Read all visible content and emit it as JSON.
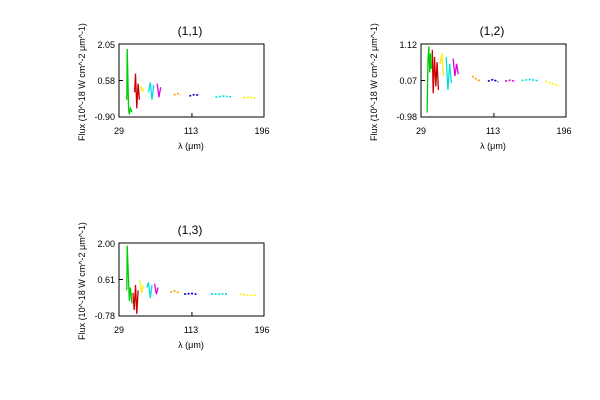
{
  "panels": [
    {
      "id": "p11",
      "title": "(1,1)",
      "ylabel": "Flux (10^-18 W cm^-2 μm^-1)",
      "xlabel": "λ (μm)",
      "xticks": [
        "29",
        "113",
        "196"
      ],
      "yticks": [
        "2.05",
        "0.58",
        "-0.90"
      ]
    },
    {
      "id": "p12",
      "title": "(1,2)",
      "ylabel": "Flux (10^-18 W cm^-2 μm^-1)",
      "xlabel": "λ (μm)",
      "xticks": [
        "29",
        "113",
        "196"
      ],
      "yticks": [
        "1.12",
        "0.07",
        "-0.98"
      ]
    },
    {
      "id": "p13",
      "title": "(1,3)",
      "ylabel": "Flux (10^-18 W cm^-2 μm^-1)",
      "xlabel": "λ (μm)",
      "xticks": [
        "29",
        "113",
        "196"
      ],
      "yticks": [
        "2.00",
        "0.61",
        "-0.78"
      ]
    }
  ],
  "chart_data": [
    {
      "type": "line",
      "title": "(1,1)",
      "xlabel": "λ (μm)",
      "ylabel": "Flux (10^-18 W cm^-2 μm^-1)",
      "xlim": [
        29,
        196
      ],
      "ylim": [
        -0.9,
        2.05
      ],
      "series": [
        {
          "color": "#00cc00",
          "x": [
            38,
            38.5,
            40,
            41,
            42,
            44
          ],
          "y": [
            -0.2,
            1.85,
            -0.6,
            -0.8,
            -0.55,
            -0.7
          ]
        },
        {
          "color": "#cc0000",
          "x": [
            47,
            48,
            49.5,
            51,
            52.5
          ],
          "y": [
            0.1,
            0.85,
            -0.55,
            0.45,
            -0.2
          ]
        },
        {
          "color": "#ffee00",
          "x": [
            54,
            56,
            58
          ],
          "y": [
            0.35,
            0.15,
            0.25
          ]
        },
        {
          "color": "#00dddd",
          "x": [
            63,
            65,
            67,
            69
          ],
          "y": [
            0.1,
            0.5,
            -0.2,
            0.4
          ]
        },
        {
          "color": "#dd00dd",
          "x": [
            73,
            75,
            77
          ],
          "y": [
            0.45,
            -0.1,
            0.3
          ]
        },
        {
          "color": "#ff9900",
          "x": [
            92,
            96,
            100
          ],
          "y": [
            -0.02,
            0.05,
            0.0
          ]
        },
        {
          "color": "#0000cc",
          "x": [
            110,
            116,
            122
          ],
          "y": [
            -0.05,
            0.0,
            -0.02
          ]
        },
        {
          "color": "#00dddd",
          "x": [
            140,
            150,
            160
          ],
          "y": [
            -0.1,
            -0.05,
            -0.1
          ]
        },
        {
          "color": "#ffee00",
          "x": [
            172,
            180,
            188
          ],
          "y": [
            -0.12,
            -0.1,
            -0.15
          ]
        }
      ]
    },
    {
      "type": "line",
      "title": "(1,2)",
      "xlabel": "λ (μm)",
      "ylabel": "Flux (10^-18 W cm^-2 μm^-1)",
      "xlim": [
        29,
        196
      ],
      "ylim": [
        -0.98,
        1.12
      ],
      "series": [
        {
          "color": "#00cc00",
          "x": [
            36,
            37,
            38,
            39,
            40,
            41
          ],
          "y": [
            -0.85,
            0.6,
            1.05,
            0.3,
            0.85,
            0.4
          ]
        },
        {
          "color": "#cc0000",
          "x": [
            42,
            43,
            44.5,
            46,
            47.5,
            49
          ],
          "y": [
            0.95,
            -0.3,
            0.75,
            -0.1,
            0.6,
            -0.2
          ]
        },
        {
          "color": "#ffee00",
          "x": [
            51,
            53,
            55
          ],
          "y": [
            0.55,
            0.85,
            0.2
          ]
        },
        {
          "color": "#00dddd",
          "x": [
            58,
            60,
            62,
            64
          ],
          "y": [
            0.75,
            -0.2,
            0.55,
            0.0
          ]
        },
        {
          "color": "#dd00dd",
          "x": [
            66,
            68,
            70,
            72
          ],
          "y": [
            0.7,
            0.2,
            0.55,
            0.25
          ]
        },
        {
          "color": "#ff9900",
          "x": [
            88,
            93,
            98
          ],
          "y": [
            0.2,
            0.1,
            0.05
          ]
        },
        {
          "color": "#0000cc",
          "x": [
            106,
            112,
            118
          ],
          "y": [
            0.05,
            0.1,
            0.03
          ]
        },
        {
          "color": "#dd00dd",
          "x": [
            126,
            132,
            138
          ],
          "y": [
            0.05,
            0.08,
            0.04
          ]
        },
        {
          "color": "#00dddd",
          "x": [
            145,
            155,
            164
          ],
          "y": [
            0.07,
            0.1,
            0.06
          ]
        },
        {
          "color": "#ffee00",
          "x": [
            172,
            180,
            188
          ],
          "y": [
            0.05,
            -0.02,
            -0.08
          ]
        }
      ]
    },
    {
      "type": "line",
      "title": "(1,3)",
      "xlabel": "λ (μm)",
      "ylabel": "Flux (10^-18 W cm^-2 μm^-1)",
      "xlim": [
        29,
        196
      ],
      "ylim": [
        -0.78,
        2.0
      ],
      "series": [
        {
          "color": "#00cc00",
          "x": [
            38,
            38.5,
            40,
            41,
            42,
            44
          ],
          "y": [
            0.2,
            1.9,
            0.5,
            -0.2,
            0.3,
            -0.3
          ]
        },
        {
          "color": "#cc0000",
          "x": [
            45,
            46.5,
            48,
            49.5,
            51
          ],
          "y": [
            0.1,
            -0.55,
            0.4,
            -0.7,
            0.2
          ]
        },
        {
          "color": "#ffee00",
          "x": [
            53,
            55,
            57
          ],
          "y": [
            0.6,
            0.1,
            0.4
          ]
        },
        {
          "color": "#00dddd",
          "x": [
            61,
            63,
            65,
            67
          ],
          "y": [
            0.3,
            0.5,
            -0.1,
            0.4
          ]
        },
        {
          "color": "#dd00dd",
          "x": [
            70,
            72,
            74
          ],
          "y": [
            0.45,
            0.05,
            0.3
          ]
        },
        {
          "color": "#ff9900",
          "x": [
            88,
            93,
            98
          ],
          "y": [
            0.12,
            0.18,
            0.1
          ]
        },
        {
          "color": "#0000cc",
          "x": [
            104,
            112,
            120
          ],
          "y": [
            0.05,
            0.08,
            0.04
          ]
        },
        {
          "color": "#00dddd",
          "x": [
            135,
            145,
            155
          ],
          "y": [
            0.06,
            0.05,
            0.07
          ]
        },
        {
          "color": "#ffee00",
          "x": [
            168,
            178,
            188
          ],
          "y": [
            0.05,
            0.0,
            0.02
          ]
        }
      ]
    }
  ]
}
